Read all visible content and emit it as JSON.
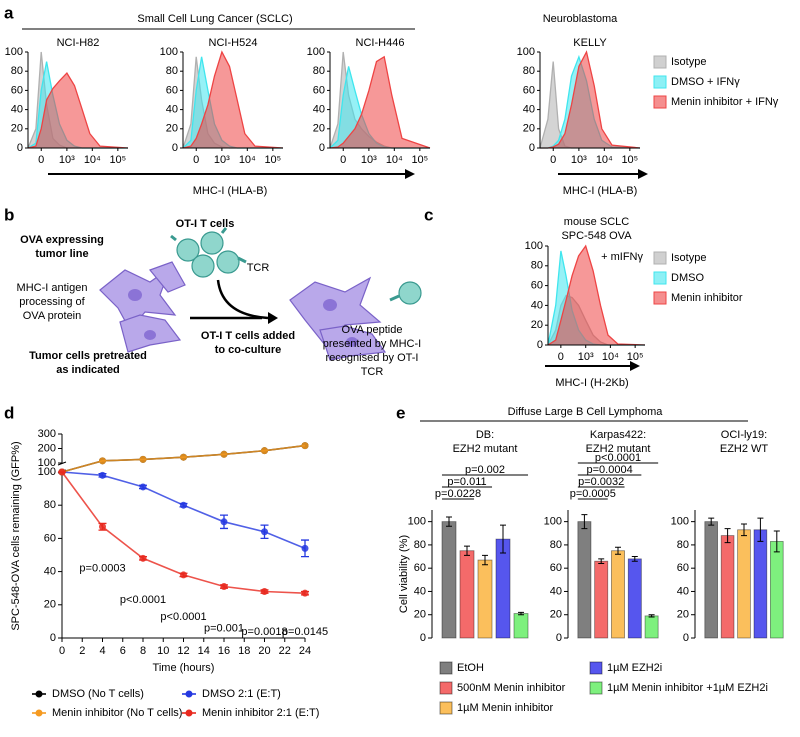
{
  "panel_labels": [
    "a",
    "b",
    "c",
    "d",
    "e"
  ],
  "groups": {
    "sclc": "Small Cell Lung Cancer (SCLC)",
    "neuroblastoma": "Neuroblastoma",
    "dlbcl": "Diffuse Large B Cell Lymphoma"
  },
  "diagram": {
    "tumor_line": [
      "OVA expressing",
      "tumor line"
    ],
    "processing": [
      "MHC-I antigen",
      "processing of",
      "OVA protein"
    ],
    "t_cells": "OT-I T cells",
    "tcr": "TCR",
    "added": [
      "OT-I T cells added",
      "to co-culture"
    ],
    "presented": [
      "OVA peptide",
      "presented by MHC-I",
      "recognised by OT-I",
      "TCR"
    ],
    "pretreated": [
      "Tumor cells pretreated",
      "as indicated"
    ]
  },
  "chart_data": [
    {
      "type": "flow",
      "title": "NCI-H82",
      "xscale": "biexponential",
      "x": [
        -300,
        -100,
        0,
        100,
        250,
        500,
        1000,
        2000,
        4000,
        8000,
        20000,
        250000
      ],
      "xlim": [
        -300,
        250000
      ],
      "xticks": [
        0,
        {
          "value": 1000,
          "label": "10³"
        },
        {
          "value": 10000,
          "label": "10⁴"
        },
        {
          "value": 100000,
          "label": "10⁵"
        }
      ],
      "ylim": [
        0,
        100
      ],
      "yticks": [
        0,
        20,
        40,
        60,
        80,
        100
      ],
      "series": [
        {
          "color": "#b0b0b0",
          "values": [
            0,
            20,
            100,
            45,
            10,
            3,
            0,
            0,
            0,
            0,
            0,
            0
          ]
        },
        {
          "color": "#3fe6ee",
          "values": [
            0,
            5,
            60,
            90,
            55,
            25,
            8,
            2,
            0,
            0,
            0,
            0
          ]
        },
        {
          "color": "#ee4444",
          "values": [
            0,
            2,
            20,
            50,
            62,
            70,
            78,
            65,
            40,
            15,
            2,
            0
          ]
        }
      ]
    },
    {
      "type": "flow",
      "title": "NCI-H524",
      "xscale": "biexponential",
      "xlabel": "MHC-I (HLA-B)",
      "x": [
        -300,
        -100,
        0,
        100,
        250,
        500,
        1000,
        2000,
        4000,
        8000,
        20000,
        250000
      ],
      "xlim": [
        -300,
        250000
      ],
      "xticks": [
        0,
        {
          "value": 1000,
          "label": "10³"
        },
        {
          "value": 10000,
          "label": "10⁴"
        },
        {
          "value": 100000,
          "label": "10⁵"
        }
      ],
      "ylim": [
        0,
        100
      ],
      "yticks": [
        0,
        20,
        40,
        60,
        80,
        100
      ],
      "series": [
        {
          "color": "#b0b0b0",
          "values": [
            0,
            25,
            95,
            50,
            15,
            5,
            1,
            0,
            0,
            0,
            0,
            0
          ]
        },
        {
          "color": "#3fe6ee",
          "values": [
            0,
            8,
            60,
            95,
            60,
            25,
            8,
            2,
            0,
            0,
            0,
            0
          ]
        },
        {
          "color": "#ee4444",
          "values": [
            0,
            2,
            10,
            25,
            45,
            75,
            100,
            85,
            50,
            15,
            2,
            0
          ]
        }
      ]
    },
    {
      "type": "flow",
      "title": "NCI-H446",
      "xscale": "biexponential",
      "x": [
        -300,
        -100,
        0,
        100,
        250,
        500,
        1000,
        2000,
        4000,
        8000,
        20000,
        250000
      ],
      "xlim": [
        -300,
        250000
      ],
      "xticks": [
        0,
        {
          "value": 1000,
          "label": "10³"
        },
        {
          "value": 10000,
          "label": "10⁴"
        },
        {
          "value": 100000,
          "label": "10⁵"
        }
      ],
      "ylim": [
        0,
        100
      ],
      "yticks": [
        0,
        20,
        40,
        60,
        80,
        100
      ],
      "series": [
        {
          "color": "#b0b0b0",
          "values": [
            0,
            25,
            100,
            55,
            30,
            20,
            12,
            6,
            2,
            0,
            0,
            0
          ]
        },
        {
          "color": "#3fe6ee",
          "values": [
            0,
            8,
            55,
            85,
            60,
            35,
            15,
            5,
            1,
            0,
            0,
            0
          ]
        },
        {
          "color": "#ee4444",
          "values": [
            0,
            1,
            5,
            12,
            20,
            35,
            60,
            90,
            95,
            55,
            10,
            0
          ]
        }
      ]
    },
    {
      "type": "flow",
      "title": "KELLY",
      "xscale": "biexponential",
      "xlabel": "MHC-I (HLA-B)",
      "legend": "right",
      "x": [
        -300,
        -100,
        0,
        100,
        250,
        500,
        1000,
        2000,
        4000,
        8000,
        20000,
        250000
      ],
      "xlim": [
        -300,
        250000
      ],
      "xticks": [
        0,
        {
          "value": 1000,
          "label": "10³"
        },
        {
          "value": 10000,
          "label": "10⁴"
        },
        {
          "value": 100000,
          "label": "10⁵"
        }
      ],
      "ylim": [
        0,
        100
      ],
      "yticks": [
        0,
        20,
        40,
        60,
        80,
        100
      ],
      "series": [
        {
          "name": "Isotype",
          "color": "#b0b0b0",
          "values": [
            0,
            30,
            90,
            20,
            2,
            0,
            0,
            0,
            0,
            0,
            0,
            0
          ]
        },
        {
          "name": "DMSO + IFNγ",
          "color": "#3fe6ee",
          "values": [
            0,
            0,
            2,
            8,
            30,
            75,
            95,
            70,
            30,
            8,
            1,
            0
          ]
        },
        {
          "name": "Menin inhibitor + IFNγ",
          "color": "#ee4444",
          "values": [
            0,
            0,
            1,
            4,
            15,
            45,
            85,
            100,
            65,
            20,
            3,
            0
          ]
        }
      ]
    },
    {
      "type": "flow",
      "title": [
        "mouse SCLC",
        "SPC-548 OVA"
      ],
      "annotation": "+ mIFNγ",
      "xscale": "biexponential",
      "xlabel": "MHC-I (H-2Kb)",
      "legend": "right",
      "x": [
        -300,
        -100,
        0,
        100,
        250,
        500,
        1000,
        2000,
        4000,
        8000,
        20000,
        250000
      ],
      "xlim": [
        -300,
        250000
      ],
      "xticks": [
        0,
        {
          "value": 1000,
          "label": "10³"
        },
        {
          "value": 10000,
          "label": "10⁴"
        },
        {
          "value": 100000,
          "label": "10⁵"
        }
      ],
      "ylim": [
        0,
        100
      ],
      "yticks": [
        0,
        20,
        40,
        60,
        80,
        100
      ],
      "series": [
        {
          "name": "Isotype",
          "color": "#b0b0b0",
          "values": [
            0,
            15,
            40,
            50,
            48,
            40,
            25,
            10,
            3,
            0,
            0,
            0
          ]
        },
        {
          "name": "DMSO",
          "color": "#3fe6ee",
          "values": [
            0,
            40,
            95,
            70,
            35,
            15,
            5,
            1,
            0,
            0,
            0,
            0
          ]
        },
        {
          "name": "Menin inhibitor",
          "color": "#ee4444",
          "values": [
            0,
            5,
            25,
            45,
            70,
            90,
            100,
            75,
            40,
            10,
            1,
            0
          ]
        }
      ]
    },
    {
      "type": "line",
      "xlabel": "Time (hours)",
      "ylabel": "SPC-548-OVA cells remaining (GFP%)",
      "x": [
        0,
        4,
        8,
        12,
        16,
        20,
        24
      ],
      "xlim": [
        0,
        24
      ],
      "xticks": [
        0,
        2,
        4,
        6,
        8,
        10,
        12,
        14,
        16,
        18,
        20,
        22,
        24
      ],
      "ylim": [
        0,
        300
      ],
      "axis_break": 100,
      "yticks": [
        0,
        20,
        40,
        60,
        80,
        100,
        200,
        300
      ],
      "series": [
        {
          "name": "DMSO (No T cells)",
          "color": "#000000",
          "values": [
            100,
            115,
            125,
            140,
            160,
            185,
            220
          ]
        },
        {
          "name": "DMSO 2:1 (E:T)",
          "color": "#2438e0",
          "values": [
            100,
            98,
            91,
            80,
            70,
            64,
            54
          ],
          "errors": [
            0,
            1,
            1,
            1,
            4,
            4,
            5
          ]
        },
        {
          "name": "Menin inhibitor (No T cells)",
          "color": "#f59a20",
          "values": [
            100,
            115,
            125,
            140,
            160,
            185,
            220
          ]
        },
        {
          "name": "Menin inhibitor 2:1 (E:T)",
          "color": "#e8281e",
          "values": [
            100,
            67,
            48,
            38,
            31,
            28,
            27
          ],
          "errors": [
            0,
            2,
            1,
            1,
            1,
            1,
            1
          ]
        }
      ],
      "p_values": [
        null,
        "p=0.0003",
        "p<0.0001",
        "p<0.0001",
        "p=0.001",
        "p=0.0018",
        "p=0.0145"
      ]
    },
    {
      "type": "bar",
      "title": [
        "DB:",
        "EZH2 mutant"
      ],
      "ylabel": "Cell viability (%)",
      "categories": [
        "EtOH",
        "500nM Menin inhibitor",
        "1µM Menin inhibitor",
        "1µM EZH2i",
        "1µM Menin inhibitor +1µM EZH2i"
      ],
      "colors": [
        "#7f7f7f",
        "#f46a6a",
        "#fbbf5c",
        "#5656ee",
        "#7ef07e"
      ],
      "values": [
        100,
        75,
        67,
        85,
        21
      ],
      "errors": [
        4,
        4,
        4,
        12,
        1
      ],
      "ylim": [
        0,
        110
      ],
      "yticks": [
        0,
        20,
        40,
        60,
        80,
        100
      ],
      "p_brackets": [
        {
          "to": 4,
          "text": "p=0.002"
        },
        {
          "to": 2,
          "text": "p=0.011"
        },
        {
          "to": 1,
          "text": "p=0.0228"
        }
      ]
    },
    {
      "type": "bar",
      "title": [
        "Karpas422:",
        "EZH2 mutant"
      ],
      "values": [
        100,
        66,
        75,
        68,
        19
      ],
      "errors": [
        6,
        2,
        3,
        2,
        1
      ],
      "ylim": [
        0,
        110
      ],
      "yticks": [
        0,
        20,
        40,
        60,
        80,
        100
      ],
      "p_brackets": [
        {
          "to": 4,
          "text": "p<0.0001"
        },
        {
          "to": 3,
          "text": "p=0.0004"
        },
        {
          "to": 2,
          "text": "p=0.0032"
        },
        {
          "to": 1,
          "text": "p=0.0005"
        }
      ]
    },
    {
      "type": "bar",
      "title": [
        "OCI-ly19:",
        "EZH2 WT"
      ],
      "values": [
        100,
        88,
        93,
        93,
        83
      ],
      "errors": [
        3,
        6,
        5,
        10,
        9
      ],
      "ylim": [
        0,
        110
      ],
      "yticks": [
        0,
        20,
        40,
        60,
        80,
        100
      ]
    }
  ]
}
